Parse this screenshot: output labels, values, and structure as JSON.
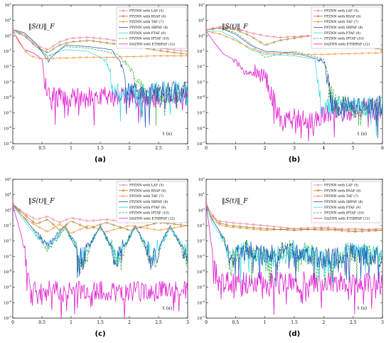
{
  "figure": {
    "panel_labels": [
      "(a)",
      "(b)",
      "(c)",
      "(d)"
    ]
  },
  "colors": {
    "LAF": "#e67a9a",
    "BSAF": "#a5781c",
    "TAF": "#f08a24",
    "SBPAF": "#1f4fb3",
    "PTAF": "#2ad8e0",
    "IPTAF": "#28a428",
    "ETSBPAF": "#e020d0"
  },
  "chart_data": [
    {
      "type": "line",
      "panel": "(a)",
      "annotation": "‖S(t)‖_F",
      "xlabel": "t (s)",
      "xlim": [
        0,
        3
      ],
      "x_ticks": [
        "0",
        "0.5",
        "1",
        "1.5",
        "2",
        "2.5",
        "3"
      ],
      "ylog": true,
      "ylim_exp": [
        -7,
        2
      ],
      "y_ticks": [
        "10^2",
        "10^1",
        "10^0",
        "10^-1",
        "10^-2",
        "10^-3",
        "10^-4",
        "10^-5",
        "10^-6",
        "10^-7"
      ],
      "legend": [
        "FPZNN with LAF (5)",
        "FPZNN with BSAF (6)",
        "FPZNN with TAF (7)",
        "FPZNN with SBPAF (8)",
        "FPZNN with PTAF (9)",
        "FPZNN with IPTAF (10)",
        "DAZNN with ETSBPAF (12)"
      ],
      "legend_position": "top-right",
      "series_log10": [
        {
          "name": "FPZNN with LAF (5)",
          "x": [
            0,
            0.2,
            0.4,
            0.6,
            0.8,
            1.0,
            1.3,
            1.6,
            2.0,
            2.5,
            3.0
          ],
          "y": [
            0.4,
            0.1,
            -0.6,
            -0.9,
            -0.4,
            -0.15,
            -0.1,
            -0.2,
            -0.5,
            -0.8,
            -1.0
          ]
        },
        {
          "name": "FPZNN with BSAF (6)",
          "x": [
            0,
            0.2,
            0.4,
            0.6,
            0.8,
            1.0,
            1.3,
            1.6,
            2.0,
            2.5,
            3.0
          ],
          "y": [
            0.4,
            0.0,
            -0.7,
            -1.1,
            -0.6,
            -0.4,
            -0.3,
            -0.45,
            -0.65,
            -0.95,
            -1.2
          ]
        },
        {
          "name": "FPZNN with TAF (7)",
          "x": [
            0,
            0.1,
            0.2,
            0.3,
            0.5,
            0.8,
            1.2,
            1.6,
            2.0,
            2.5,
            3.0
          ],
          "y": [
            0.35,
            -0.4,
            -0.9,
            -1.3,
            -1.5,
            -1.45,
            -1.4,
            -1.4,
            -1.35,
            -1.3,
            -1.3
          ]
        },
        {
          "name": "FPZNN with SBPAF (8)",
          "x": [
            0,
            0.2,
            0.4,
            0.6,
            0.9,
            1.3,
            1.7,
            1.9,
            2.0,
            2.3,
            3.0
          ],
          "y": [
            0.4,
            0.2,
            -0.5,
            -1.6,
            -0.6,
            -0.7,
            -0.9,
            -2.2,
            -3.6,
            -3.7,
            -3.6
          ]
        },
        {
          "name": "FPZNN with PTAF (9)",
          "x": [
            0,
            0.2,
            0.4,
            0.6,
            0.9,
            1.3,
            1.6,
            1.75,
            2.0,
            2.5,
            3.0
          ],
          "y": [
            0.3,
            0.0,
            -0.7,
            -1.3,
            -0.9,
            -1.0,
            -1.6,
            -3.6,
            -3.7,
            -3.6,
            -3.6
          ]
        },
        {
          "name": "FPZNN with IPTAF (10)",
          "x": [
            0,
            0.2,
            0.4,
            0.6,
            0.9,
            1.3,
            1.8,
            2.0,
            2.2,
            2.5,
            3.0
          ],
          "y": [
            0.4,
            0.2,
            -0.5,
            -1.4,
            -0.7,
            -0.8,
            -1.2,
            -2.0,
            -3.5,
            -3.8,
            -3.6
          ]
        },
        {
          "name": "DAZNN with ETSBPAF (12)",
          "x": [
            0,
            0.1,
            0.2,
            0.35,
            0.5,
            0.55,
            0.6,
            1.0,
            2.0,
            3.0
          ],
          "y": [
            0.3,
            -0.3,
            -0.9,
            -1.1,
            -1.5,
            -3.0,
            -3.9,
            -4.0,
            -4.0,
            -4.0
          ]
        }
      ]
    },
    {
      "type": "line",
      "panel": "(b)",
      "annotation": "‖S(t)‖_F",
      "xlabel": "t (s)",
      "xlim": [
        0,
        6
      ],
      "x_ticks": [
        "0",
        "1",
        "2",
        "3",
        "4",
        "5",
        "6"
      ],
      "ylog": true,
      "ylim_exp": [
        -7,
        2
      ],
      "y_ticks": [
        "10^2",
        "10^1",
        "10^0",
        "10^-1",
        "10^-2",
        "10^-3",
        "10^-4",
        "10^-5",
        "10^-6",
        "10^-7"
      ],
      "legend": [
        "FPZNN with LAF (5)",
        "FPZNN with BSAF (6)",
        "FPZNN with TAF (7)",
        "FPZNN with SBPAF (8)",
        "FPZNN with PTAF (9)",
        "FPZNN with IPTAF (10)",
        "DAZNN with ETSBPAF (12)"
      ],
      "legend_position": "top-right",
      "series_log10": [
        {
          "name": "FPZNN with LAF (5)",
          "x": [
            0,
            0.5,
            1.0,
            1.5,
            2.0,
            2.5,
            3.5,
            4.5,
            5.5,
            6.0
          ],
          "y": [
            0.4,
            0.6,
            0.5,
            0.2,
            0.0,
            -0.1,
            0.0,
            -0.2,
            -0.5,
            -0.6
          ]
        },
        {
          "name": "FPZNN with BSAF (6)",
          "x": [
            0,
            0.5,
            1.0,
            1.5,
            2.0,
            2.5,
            3.5,
            4.5,
            5.5,
            6.0
          ],
          "y": [
            0.4,
            0.5,
            0.4,
            0.0,
            -0.6,
            -0.3,
            0.0,
            -0.3,
            -0.7,
            -0.9
          ]
        },
        {
          "name": "FPZNN with TAF (7)",
          "x": [
            0,
            0.5,
            1.0,
            1.5,
            2.0,
            3.0,
            4.0,
            5.0,
            6.0
          ],
          "y": [
            0.3,
            0.1,
            -0.3,
            -0.8,
            -1.1,
            -1.2,
            -1.2,
            -1.15,
            -1.1
          ]
        },
        {
          "name": "FPZNN with SBPAF (8)",
          "x": [
            0,
            0.5,
            1.0,
            1.5,
            2.0,
            3.0,
            4.0,
            4.3,
            5.0,
            6.0
          ],
          "y": [
            0.4,
            0.5,
            0.1,
            -0.6,
            -1.0,
            -1.1,
            -1.6,
            -4.5,
            -4.6,
            -4.5
          ]
        },
        {
          "name": "FPZNN with PTAF (9)",
          "x": [
            0,
            0.5,
            1.0,
            1.5,
            2.0,
            3.0,
            3.7,
            3.9,
            5.0,
            6.0
          ],
          "y": [
            0.3,
            0.3,
            -0.2,
            -0.9,
            -1.2,
            -1.3,
            -1.5,
            -4.5,
            -4.6,
            -4.5
          ]
        },
        {
          "name": "FPZNN with IPTAF (10)",
          "x": [
            0,
            0.5,
            1.0,
            1.5,
            2.0,
            3.0,
            4.0,
            4.4,
            5.0,
            6.0
          ],
          "y": [
            0.4,
            0.5,
            0.2,
            -0.5,
            -1.4,
            -1.0,
            -1.5,
            -4.4,
            -4.6,
            -4.5
          ]
        },
        {
          "name": "DAZNN with ETSBPAF (12)",
          "x": [
            0,
            0.3,
            0.6,
            1.0,
            1.3,
            2.0,
            2.5,
            3.5,
            4.5,
            6.0
          ],
          "y": [
            0.3,
            -0.5,
            -1.2,
            -1.6,
            -2.4,
            -2.6,
            -5.3,
            -5.5,
            -4.8,
            -4.8
          ]
        }
      ]
    },
    {
      "type": "line",
      "panel": "(c)",
      "annotation": "‖S(t)‖_F",
      "xlabel": "t (s)",
      "xlim": [
        0,
        3
      ],
      "x_ticks": [
        "0",
        "0.5",
        "1",
        "1.5",
        "2",
        "2.5",
        "3"
      ],
      "ylog": true,
      "ylim_exp": [
        -7,
        2
      ],
      "y_ticks": [
        "10^2",
        "10^1",
        "10^0",
        "10^-1",
        "10^-2",
        "10^-3",
        "10^-4",
        "10^-5",
        "10^-6",
        "10^-7"
      ],
      "legend": [
        "FPZNN with LAF (5)",
        "FPZNN with BSAF (6)",
        "FPZNN with TAF (7)",
        "FPZNN with SBPAF (8)",
        "FPZNN with PTAF (9)",
        "FPZNN with IPTAF (10)",
        "DAZNN with ETSBPAF (12)"
      ],
      "legend_position": "top-right",
      "series_log10": [
        {
          "name": "FPZNN with LAF (5)",
          "x": [
            0,
            0.2,
            0.4,
            0.6,
            0.8,
            1.0,
            1.3,
            1.6,
            2.0,
            2.5,
            3.0
          ],
          "y": [
            0.4,
            -0.2,
            -0.6,
            -0.4,
            -0.8,
            -0.5,
            -0.7,
            -0.6,
            -0.8,
            -0.6,
            -0.8
          ]
        },
        {
          "name": "FPZNN with BSAF (6)",
          "x": [
            0,
            0.2,
            0.4,
            0.6,
            0.8,
            1.0,
            1.3,
            1.6,
            2.0,
            2.5,
            3.0
          ],
          "y": [
            0.4,
            -0.3,
            -0.9,
            -0.6,
            -1.3,
            -0.7,
            -1.2,
            -0.8,
            -1.3,
            -0.8,
            -1.0
          ]
        },
        {
          "name": "FPZNN with TAF (7)",
          "x": [
            0,
            0.2,
            0.4,
            0.6,
            0.8,
            1.0,
            1.3,
            1.6,
            2.0,
            2.5,
            3.0
          ],
          "y": [
            0.3,
            -0.5,
            -1.0,
            -1.4,
            -0.9,
            -1.5,
            -1.0,
            -1.4,
            -1.0,
            -1.3,
            -1.0
          ]
        },
        {
          "name": "FPZNN with SBPAF (8)",
          "x": [
            0,
            0.3,
            0.6,
            0.9,
            1.2,
            1.5,
            1.8,
            2.1,
            2.4,
            2.7,
            3.0
          ],
          "y": [
            0.4,
            -1.0,
            -2.3,
            -1.0,
            -3.2,
            -1.0,
            -3.2,
            -1.0,
            -3.3,
            -1.0,
            -3.0
          ]
        },
        {
          "name": "FPZNN with PTAF (9)",
          "x": [
            0,
            0.3,
            0.6,
            0.9,
            1.2,
            1.5,
            1.8,
            2.1,
            2.4,
            2.7,
            3.0
          ],
          "y": [
            0.3,
            -1.2,
            -2.4,
            -1.2,
            -3.0,
            -1.1,
            -3.1,
            -1.1,
            -3.0,
            -1.2,
            -2.8
          ]
        },
        {
          "name": "FPZNN with IPTAF (10)",
          "x": [
            0,
            0.3,
            0.6,
            0.9,
            1.2,
            1.5,
            1.8,
            2.1,
            2.4,
            2.7,
            3.0
          ],
          "y": [
            0.4,
            -1.0,
            -2.6,
            -1.1,
            -3.4,
            -1.0,
            -3.3,
            -1.0,
            -3.4,
            -1.1,
            -3.2
          ]
        },
        {
          "name": "DAZNN with ETSBPAF (12)",
          "x": [
            0,
            0.1,
            0.2,
            0.3,
            0.5,
            1.0,
            1.5,
            2.0,
            2.5,
            3.0
          ],
          "y": [
            0.3,
            -1.0,
            -2.5,
            -5.0,
            -5.2,
            -5.3,
            -5.2,
            -5.3,
            -5.2,
            -5.3
          ]
        }
      ]
    },
    {
      "type": "line",
      "panel": "(d)",
      "annotation": "‖S(t)‖_F",
      "xlabel": "t (s)",
      "xlim": [
        0,
        3
      ],
      "x_ticks": [
        "0",
        "0.5",
        "1",
        "1.5",
        "2",
        "2.5",
        "3"
      ],
      "ylog": true,
      "ylim_exp": [
        -7,
        2
      ],
      "y_ticks": [
        "10^2",
        "10^1",
        "10^0",
        "10^-1",
        "10^-2",
        "10^-3",
        "10^-4",
        "10^-5",
        "10^-6",
        "10^-7"
      ],
      "legend": [
        "FPZNN with LAF (5)",
        "FPZNN with BSAF (6)",
        "FPZNN with TAF (7)",
        "FPZNN with SBPAF (8)",
        "FPZNN with PTAF (9)",
        "FPZNN with IPTAF (10)",
        "DAZNN with ETSBPAF (12)"
      ],
      "legend_position": "top-right",
      "series_log10": [
        {
          "name": "FPZNN with LAF (5)",
          "x": [
            0,
            0.1,
            0.2,
            0.4,
            0.7,
            1.0,
            1.5,
            2.0,
            2.5,
            3.0
          ],
          "y": [
            0.4,
            -0.3,
            -0.7,
            -0.8,
            -0.9,
            -1.0,
            -1.2,
            -1.1,
            -1.3,
            -1.2
          ]
        },
        {
          "name": "FPZNN with BSAF (6)",
          "x": [
            0,
            0.1,
            0.2,
            0.4,
            0.7,
            1.0,
            1.5,
            2.0,
            2.5,
            3.0
          ],
          "y": [
            0.4,
            -0.3,
            -0.8,
            -1.0,
            -1.1,
            -1.2,
            -1.3,
            -1.2,
            -1.4,
            -1.3
          ]
        },
        {
          "name": "FPZNN with TAF (7)",
          "x": [
            0,
            0.1,
            0.2,
            0.4,
            0.7,
            1.0,
            1.5,
            2.0,
            2.5,
            3.0
          ],
          "y": [
            0.3,
            -0.5,
            -0.9,
            -1.1,
            -1.2,
            -1.3,
            -1.2,
            -1.3,
            -1.2,
            -1.3
          ]
        },
        {
          "name": "FPZNN with SBPAF (8)",
          "x": [
            0,
            0.1,
            0.2,
            0.3,
            0.4,
            0.6,
            1.0,
            1.5,
            2.0,
            2.5,
            3.0
          ],
          "y": [
            0.4,
            -0.6,
            -1.2,
            -1.8,
            -3.3,
            -2.5,
            -3.0,
            -2.6,
            -3.2,
            -2.7,
            -3.1
          ]
        },
        {
          "name": "FPZNN with PTAF (9)",
          "x": [
            0,
            0.1,
            0.2,
            0.3,
            0.4,
            0.6,
            1.0,
            1.5,
            2.0,
            2.5,
            3.0
          ],
          "y": [
            0.3,
            -0.8,
            -1.4,
            -2.0,
            -3.0,
            -2.6,
            -3.1,
            -2.7,
            -3.1,
            -2.8,
            -3.0
          ]
        },
        {
          "name": "FPZNN with IPTAF (10)",
          "x": [
            0,
            0.1,
            0.2,
            0.3,
            0.4,
            0.6,
            1.0,
            1.5,
            2.0,
            2.5,
            3.0
          ],
          "y": [
            0.4,
            -0.6,
            -1.2,
            -1.9,
            -3.4,
            -2.4,
            -3.1,
            -2.5,
            -3.2,
            -2.6,
            -3.2
          ]
        },
        {
          "name": "DAZNN with ETSBPAF (12)",
          "x": [
            0,
            0.05,
            0.1,
            0.2,
            0.5,
            1.0,
            1.5,
            2.0,
            2.5,
            3.0
          ],
          "y": [
            0.3,
            -1.0,
            -2.5,
            -4.6,
            -4.7,
            -4.6,
            -4.7,
            -4.6,
            -4.7,
            -4.6
          ]
        }
      ]
    }
  ]
}
